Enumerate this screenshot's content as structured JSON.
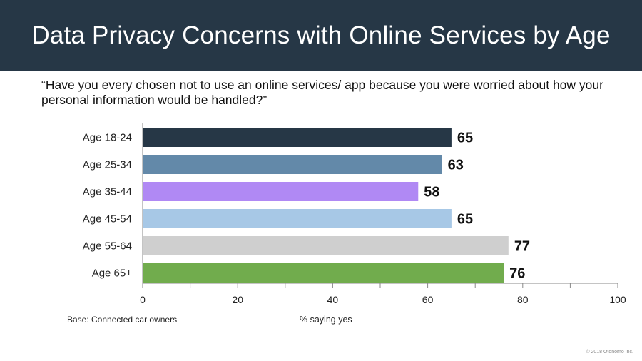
{
  "header": {
    "title": "Data Privacy Concerns with Online Services by Age"
  },
  "question": "“Have you every chosen not to use an online services/ app because you were worried about how your personal information would be handled?”",
  "footer": {
    "base_note": "Base: Connected car owners",
    "copyright": "© 2018 Otonomo Inc."
  },
  "colors": {
    "header_bg": "#263746",
    "bars": [
      "#263746",
      "#6389A9",
      "#B089F4",
      "#A7C8E6",
      "#CFCFCF",
      "#71AC4D"
    ]
  },
  "chart_data": {
    "type": "bar",
    "orientation": "horizontal",
    "categories": [
      "Age 18-24",
      "Age 25-34",
      "Age 35-44",
      "Age 45-54",
      "Age 55-64",
      "Age 65+"
    ],
    "values": [
      65,
      63,
      58,
      65,
      77,
      76
    ],
    "data_labels": [
      "65",
      "63",
      "58",
      "65",
      "77",
      "76"
    ],
    "xlabel": "% saying yes",
    "xlim": [
      0,
      100
    ],
    "x_ticks": [
      "0",
      "20",
      "40",
      "60",
      "80",
      "100"
    ],
    "grid": false,
    "legend": "none"
  }
}
